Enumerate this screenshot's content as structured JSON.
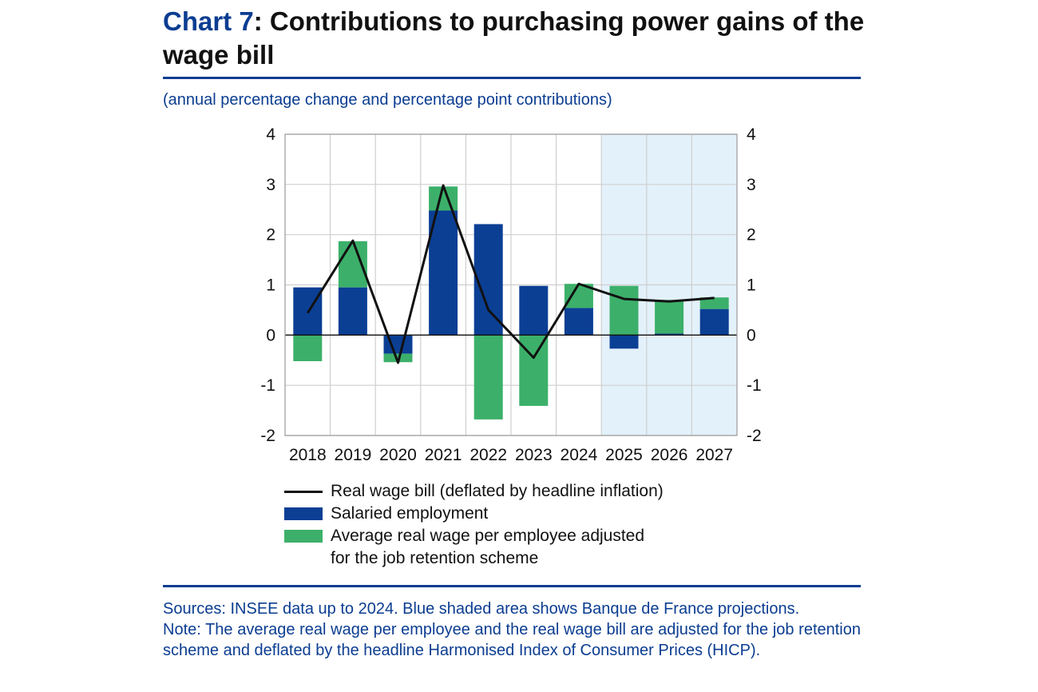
{
  "header": {
    "chart_number": "Chart 7",
    "title_rest": ": Contributions to purchasing power gains of the wage bill",
    "subtitle": "(annual percentage change and percentage point contributions)"
  },
  "colors": {
    "brand_blue": "#0b3d91",
    "salaried_bar": "#0b3f94",
    "wage_bar": "#3cb06a",
    "projection_shade": "#e3f1fb",
    "line": "#111111"
  },
  "chart_data": {
    "type": "bar",
    "stacked": true,
    "title": "Contributions to purchasing power gains of the wage bill",
    "ylabel": "annual percentage change and percentage point contributions",
    "ylim": [
      -2,
      4
    ],
    "yticks": [
      4,
      3,
      2,
      1,
      0,
      -1,
      -2
    ],
    "grid": true,
    "categories": [
      "2018",
      "2019",
      "2020",
      "2021",
      "2022",
      "2023",
      "2024",
      "2025",
      "2026",
      "2027"
    ],
    "projection_categories": [
      "2025",
      "2026",
      "2027"
    ],
    "series": [
      {
        "name": "Salaried employment",
        "kind": "bar",
        "values": [
          0.95,
          0.95,
          -0.37,
          2.48,
          2.21,
          0.98,
          0.54,
          -0.27,
          0.03,
          0.52
        ]
      },
      {
        "name": "Average real wage per employee adjusted for the job retention scheme",
        "kind": "bar",
        "values": [
          -0.52,
          0.92,
          -0.17,
          0.48,
          -1.68,
          -1.41,
          0.48,
          0.98,
          0.67,
          0.23
        ]
      },
      {
        "name": "Real wage bill (deflated by headline inflation)",
        "kind": "line",
        "values": [
          0.44,
          1.88,
          -0.55,
          2.98,
          0.5,
          -0.45,
          1.02,
          0.72,
          0.67,
          0.74
        ]
      }
    ]
  },
  "legend": {
    "line_label": "Real wage bill (deflated by headline inflation)",
    "salaried_label": "Salaried employment",
    "wage_label_line1": "Average real wage per employee adjusted",
    "wage_label_line2": "for the job retention scheme"
  },
  "footer": {
    "sources": "Sources: INSEE data up to 2024. Blue shaded area shows Banque de France projections.",
    "note": "Note: The average real wage per employee and the real wage bill are adjusted for the job retention scheme and deflated by the headline Harmonised Index of Consumer Prices (HICP)."
  }
}
